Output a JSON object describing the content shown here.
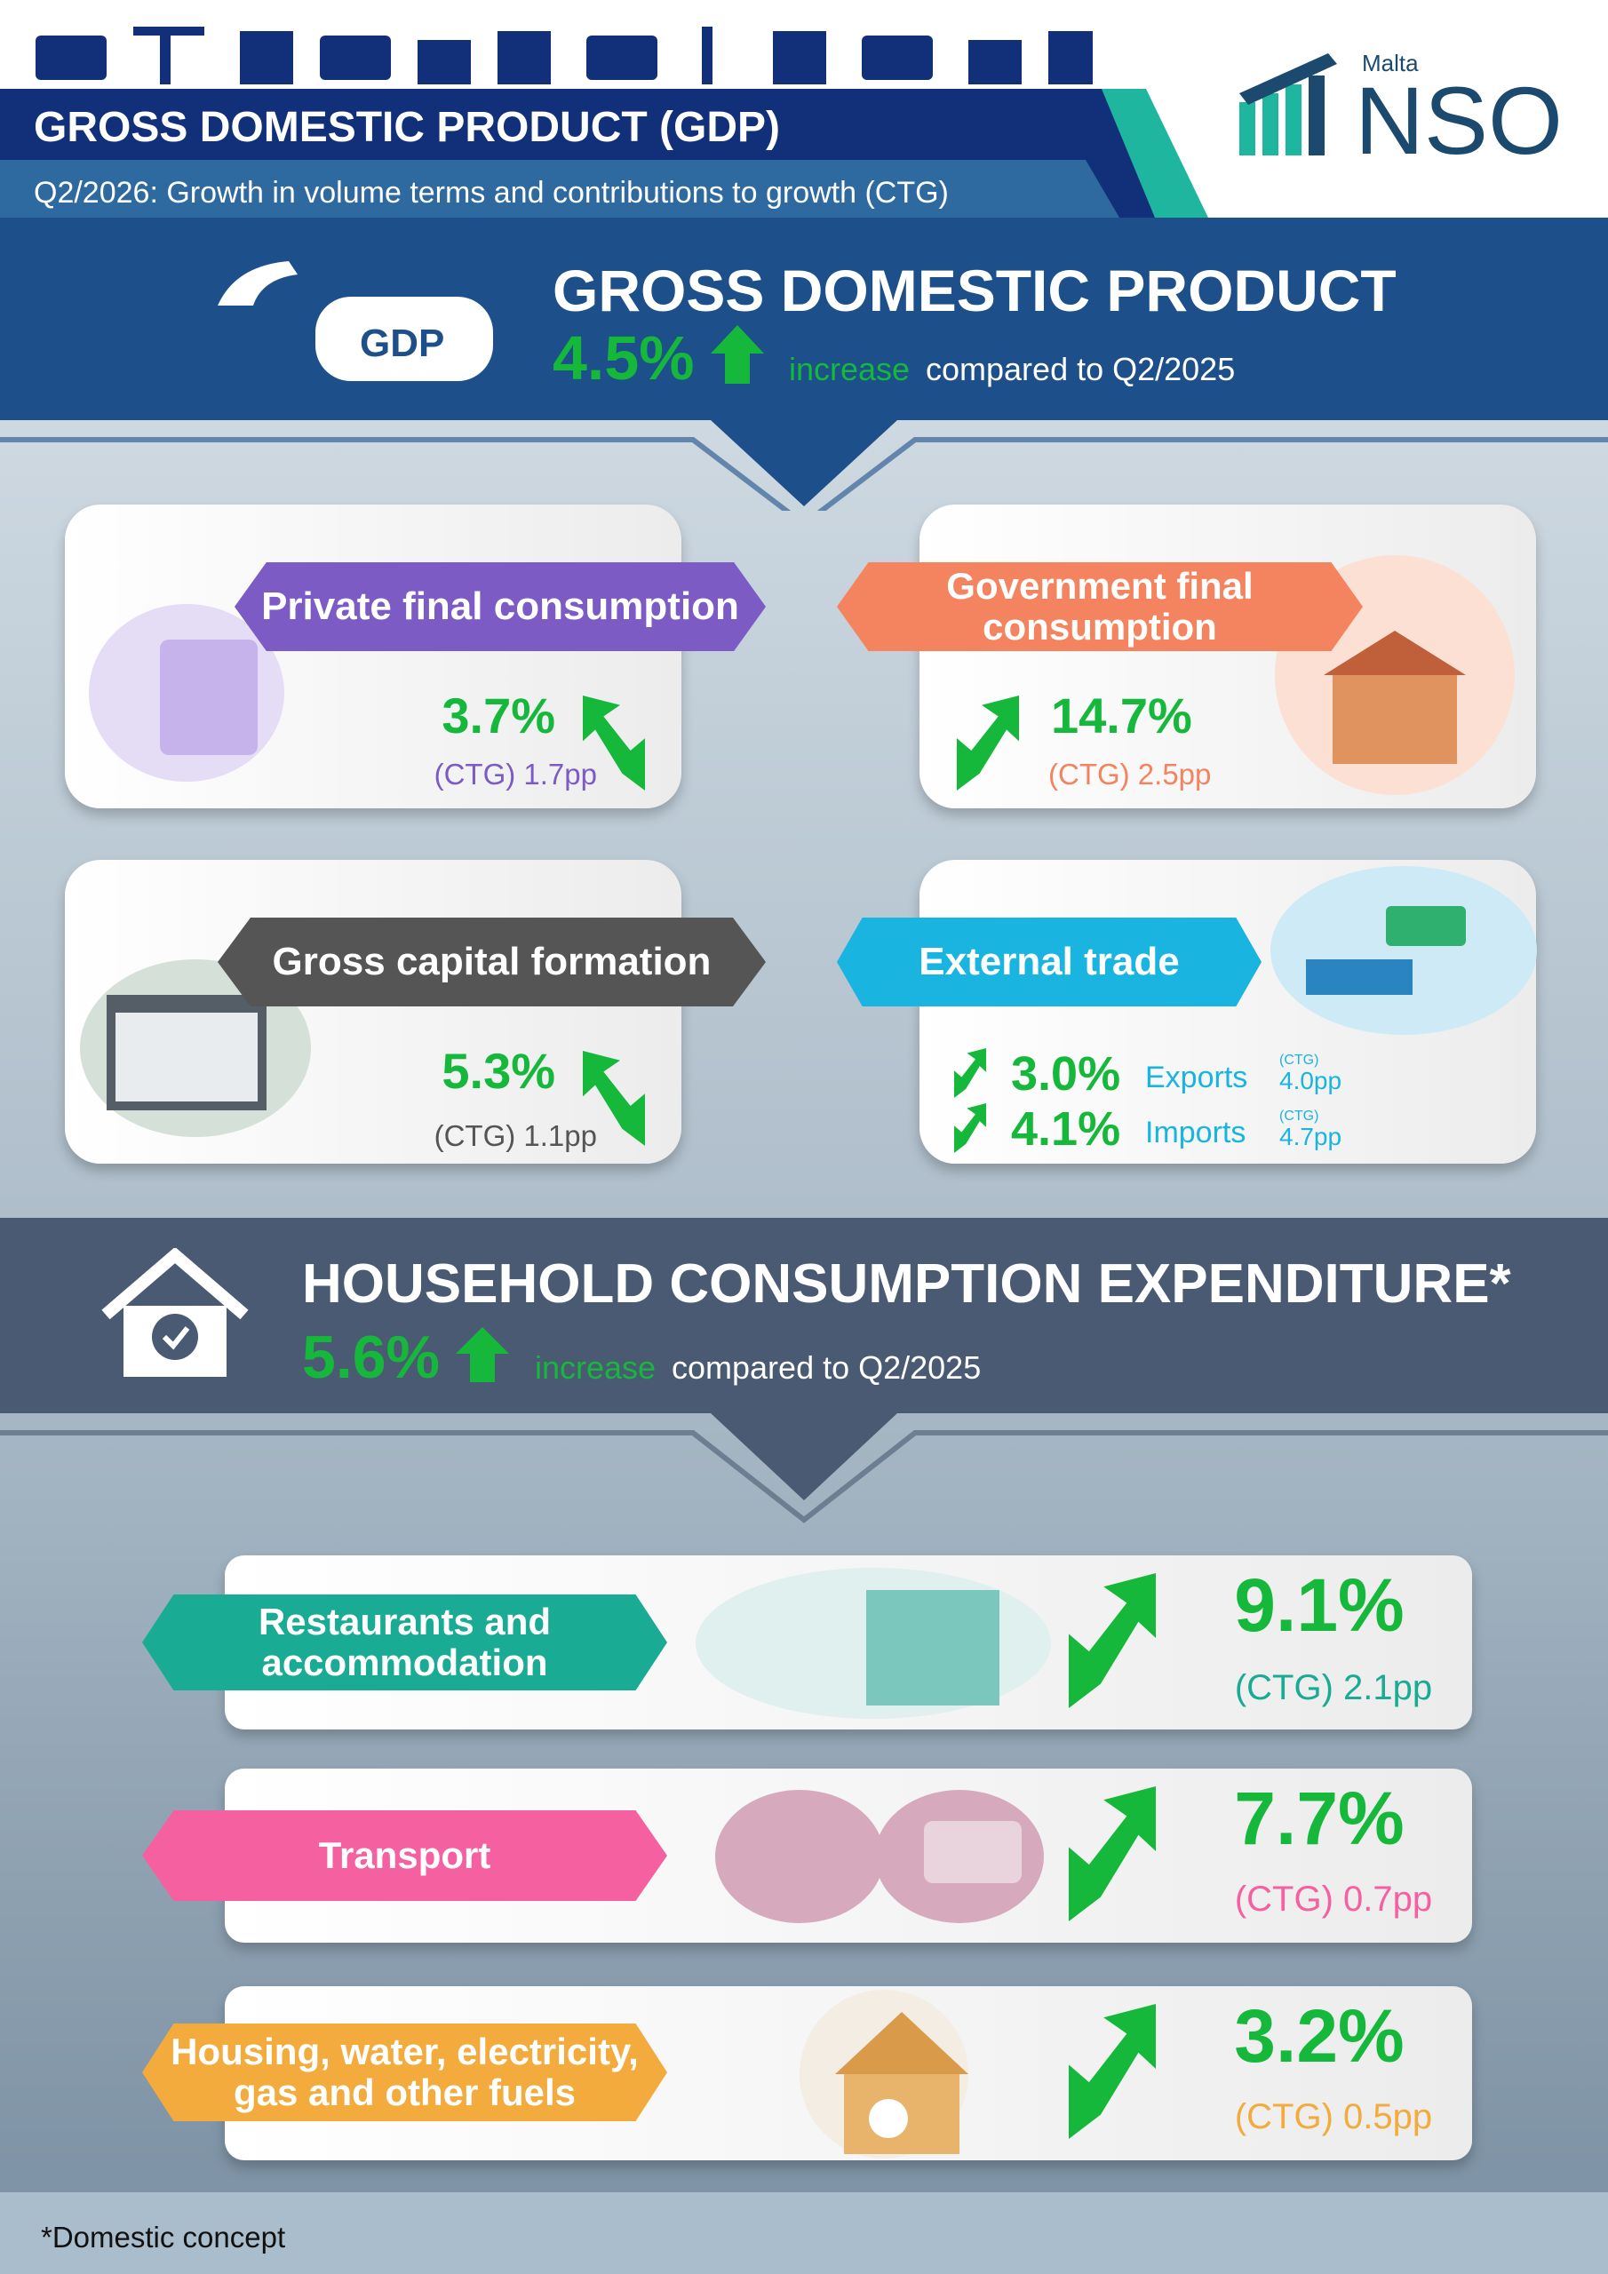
{
  "header": {
    "title": "GROSS DOMESTIC PRODUCT (GDP)",
    "subtitle": "Q2/2026: Growth in volume terms and contributions to growth (CTG)",
    "logo_country": "Malta",
    "logo_name": "NSO"
  },
  "gdp": {
    "icon_label": "GDP",
    "title": "GROSS DOMESTIC PRODUCT",
    "growth": "4.5%",
    "direction": "increase",
    "comparison": "compared to Q2/2025"
  },
  "components": [
    {
      "name": "Private final consumption",
      "growth": "3.7%",
      "ctg": "(CTG) 1.7pp"
    },
    {
      "name": "Government final consumption",
      "growth": "14.7%",
      "ctg": "(CTG) 2.5pp"
    },
    {
      "name": "Gross capital formation",
      "growth": "5.3%",
      "ctg": "(CTG) 1.1pp"
    }
  ],
  "external_trade": {
    "name": "External trade",
    "rows": [
      {
        "growth": "3.0%",
        "label": "Exports",
        "ctg_label": "(CTG)",
        "ctg": "4.0pp"
      },
      {
        "growth": "4.1%",
        "label": "Imports",
        "ctg_label": "(CTG)",
        "ctg": "4.7pp"
      }
    ]
  },
  "household": {
    "title": "HOUSEHOLD CONSUMPTION EXPENDITURE*",
    "growth": "5.6%",
    "direction": "increase",
    "comparison": "compared to Q2/2025"
  },
  "household_components": [
    {
      "name": "Restaurants and accommodation",
      "growth": "9.1%",
      "ctg": "(CTG) 2.1pp"
    },
    {
      "name": "Transport",
      "growth": "7.7%",
      "ctg": "(CTG) 0.7pp"
    },
    {
      "name": "Housing, water, electricity, gas and other fuels",
      "growth": "3.2%",
      "ctg": "(CTG) 0.5pp"
    }
  ],
  "footnote": "*Domestic concept"
}
